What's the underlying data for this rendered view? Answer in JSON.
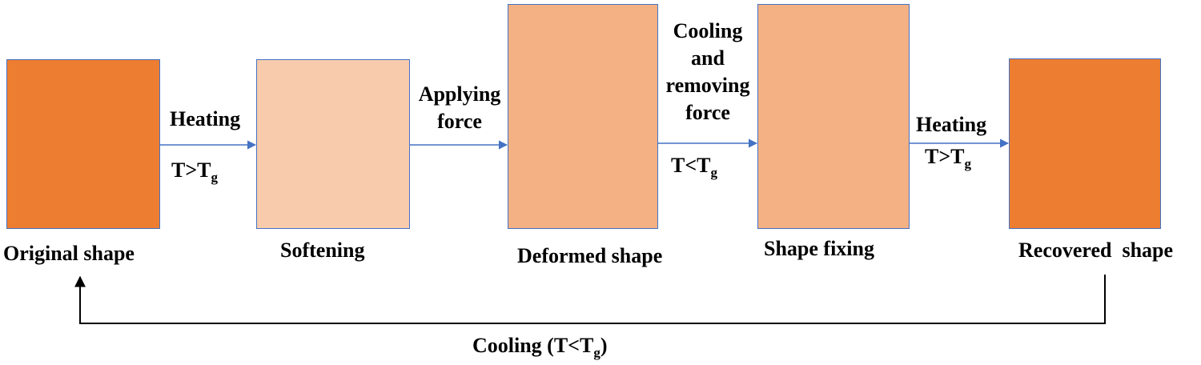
{
  "colors": {
    "original": "#ed7d31",
    "softening": "#f8cbad",
    "deformed": "#f4b183",
    "fixing": "#f4b183",
    "recovered": "#ed7d31",
    "border": "#4472c4",
    "arrow": "#4472c4",
    "return_arrow": "#000000"
  },
  "stages": {
    "original": "Original shape",
    "softening": "Softening",
    "deformed": "Deformed shape",
    "fixing": "Shape fixing",
    "recovered": "Recovered  shape"
  },
  "transitions": {
    "t1": {
      "action": "Heating",
      "cond_main": "T>T",
      "cond_sub": "g"
    },
    "t2": {
      "line1": "Applying",
      "line2": "force"
    },
    "t3": {
      "line1": "Cooling",
      "line2": "and",
      "line3": "removing",
      "line4": "force",
      "cond_main": "T<T",
      "cond_sub": "g"
    },
    "t4": {
      "action": "Heating",
      "cond_main": "T>T",
      "cond_sub": "g"
    }
  },
  "return_path": {
    "prefix": "Cooling (T<T",
    "sub": "g",
    "suffix": ")"
  }
}
